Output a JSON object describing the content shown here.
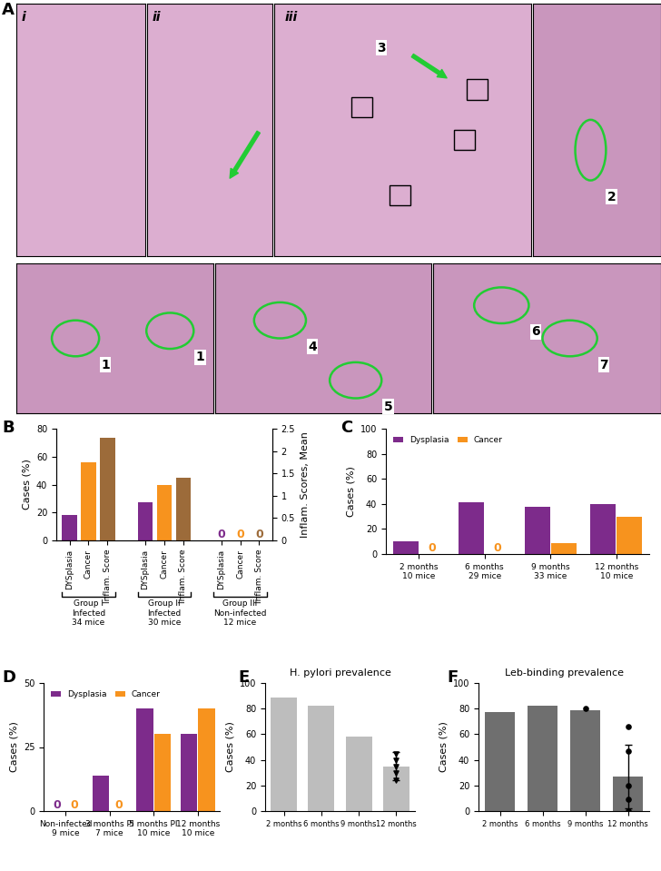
{
  "panel_a": {
    "label": "A",
    "images": [
      "i",
      "ii",
      "iii"
    ],
    "callouts": [
      "1",
      "1",
      "2",
      "3",
      "4",
      "5",
      "6",
      "7"
    ]
  },
  "chart_data": [
    {
      "panel": "B",
      "type": "bar",
      "categories": [
        "Group I\nInfected\n34 mice",
        "Group II\nInfected\n30 mice",
        "Group III\nNon-infected\n12 mice"
      ],
      "series": [
        {
          "name": "DYSplasia",
          "color": "#7d2b8b",
          "values": [
            18,
            27,
            0
          ],
          "value_labels": [
            null,
            null,
            "0"
          ]
        },
        {
          "name": "Cancer",
          "color": "#f7931e",
          "values": [
            56,
            40,
            0
          ],
          "value_labels": [
            null,
            null,
            "0"
          ]
        },
        {
          "name": "Inflam. Score",
          "color": "#9c6b3a",
          "values": [
            2.3,
            1.4,
            0
          ],
          "value_labels": [
            null,
            null,
            "0"
          ],
          "axis": "y2"
        }
      ],
      "y_label": "Cases (%)",
      "y2_label": "Inflam. Scores, Mean",
      "ylim": [
        0,
        80
      ],
      "yticks": [
        0,
        20,
        40,
        60,
        80
      ],
      "y2lim": [
        0,
        2.5
      ],
      "y2ticks": [
        0,
        0.5,
        1,
        1.5,
        2,
        2.5
      ],
      "data_labels": true
    },
    {
      "panel": "C",
      "type": "bar",
      "categories": [
        "2 months\n10 mice",
        "6 months\n29 mice",
        "9 months\n33 mice",
        "12 months\n10 mice"
      ],
      "series": [
        {
          "name": "Dysplasia",
          "color": "#7d2b8b",
          "values": [
            10,
            41,
            38,
            40
          ],
          "value_labels": [
            null,
            null,
            null,
            null
          ]
        },
        {
          "name": "Cancer",
          "color": "#f7931e",
          "values": [
            0,
            0,
            9,
            30
          ],
          "value_labels": [
            "0",
            "0",
            null,
            null
          ]
        }
      ],
      "y_label": "Cases (%)",
      "ylim": [
        0,
        100
      ],
      "yticks": [
        0,
        20,
        40,
        60,
        80,
        100
      ],
      "legend": "upper left",
      "data_labels": true
    },
    {
      "panel": "D",
      "type": "bar",
      "categories": [
        "Non-infected\n9 mice",
        "3 months PI\n7 mice",
        "5 months PI\n10 mice",
        "12 months\n10 mice"
      ],
      "series": [
        {
          "name": "Dysplasia",
          "color": "#7d2b8b",
          "values": [
            0,
            14,
            40,
            30
          ],
          "value_labels": [
            "0",
            null,
            null,
            null
          ]
        },
        {
          "name": "Cancer",
          "color": "#f7931e",
          "values": [
            0,
            0,
            30,
            40
          ],
          "value_labels": [
            "0",
            "0",
            null,
            null
          ]
        }
      ],
      "y_label": "Cases (%)",
      "ylim": [
        0,
        50
      ],
      "yticks": [
        0,
        25,
        50
      ],
      "legend": "upper left",
      "data_labels": true
    },
    {
      "panel": "E",
      "type": "bar",
      "title": "H. pylori prevalence",
      "categories": [
        "2 months",
        "6 months",
        "9 months",
        "12 months"
      ],
      "values": [
        89,
        82,
        58,
        35
      ],
      "errors": [
        null,
        null,
        null,
        11
      ],
      "points": [
        null,
        null,
        null,
        [
          45,
          40,
          35,
          30,
          24
        ]
      ],
      "marker": "triangle_down",
      "color": "#bdbdbd",
      "y_label": "Cases (%)",
      "ylim": [
        0,
        100
      ],
      "yticks": [
        0,
        20,
        40,
        60,
        80,
        100
      ]
    },
    {
      "panel": "F",
      "type": "bar",
      "title": "Leb-binding prevalence",
      "categories": [
        "2 months",
        "6 months",
        "9 months",
        "12 months"
      ],
      "values": [
        77,
        82,
        79,
        27
      ],
      "errors": [
        null,
        null,
        null,
        25
      ],
      "points": [
        null,
        null,
        [
          80
        ],
        [
          66,
          47,
          20,
          9,
          0
        ]
      ],
      "marker": "circle",
      "color": "#6f6f6f",
      "y_label": "Cases (%)",
      "ylim": [
        0,
        100
      ],
      "yticks": [
        0,
        20,
        40,
        60,
        80,
        100
      ]
    }
  ]
}
